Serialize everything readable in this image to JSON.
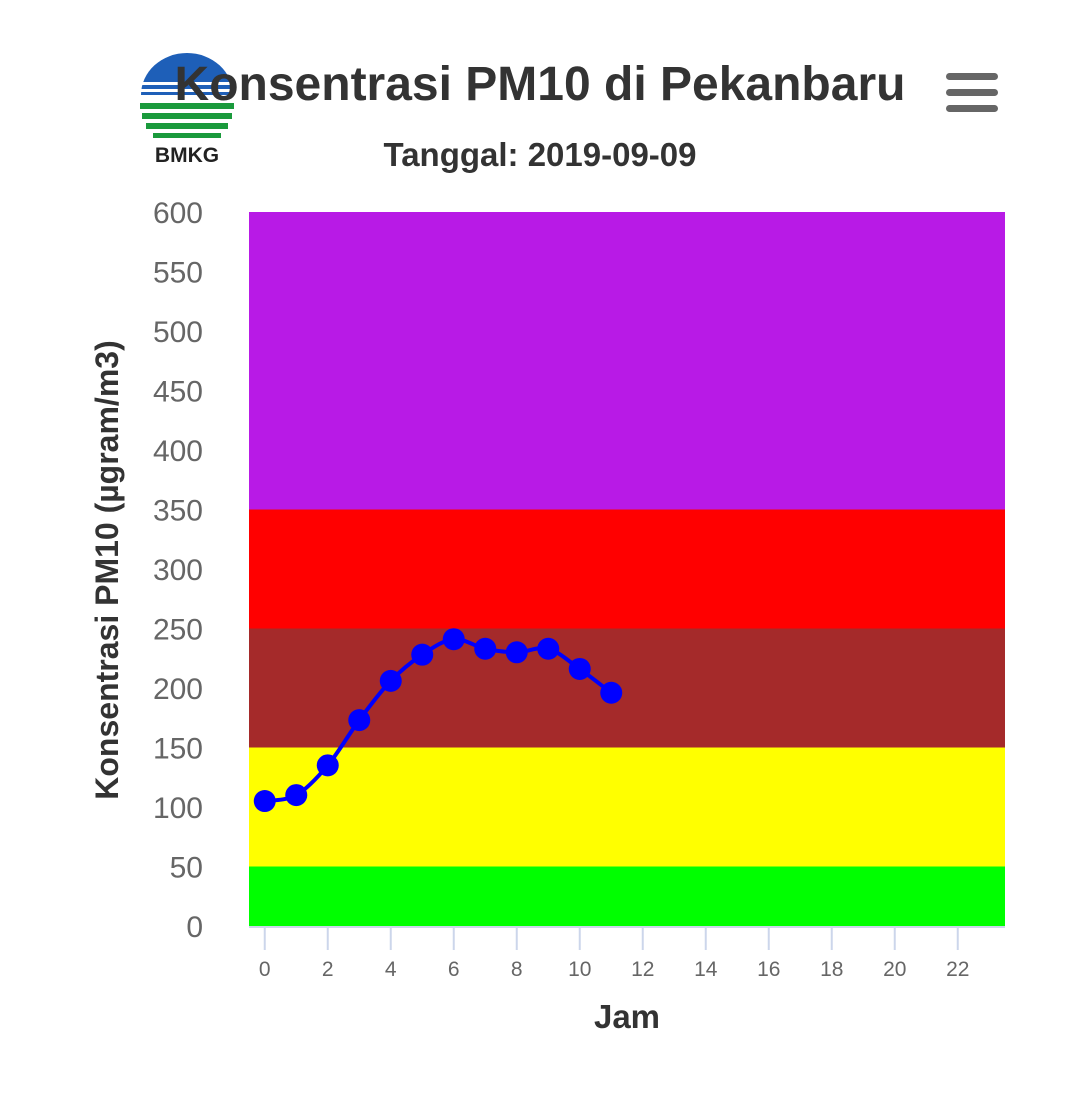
{
  "chart_data": {
    "type": "line",
    "title": "Konsentrasi PM10 di Pekanbaru",
    "subtitle": "Tanggal: 2019-09-09",
    "xlabel": "Jam",
    "ylabel": "Konsentrasi PM10 (µgram/m3)",
    "xlim": [
      -0.5,
      23.5
    ],
    "ylim": [
      0,
      600
    ],
    "xticks": [
      0,
      2,
      4,
      6,
      8,
      10,
      12,
      14,
      16,
      18,
      20,
      22
    ],
    "yticks": [
      0,
      50,
      100,
      150,
      200,
      250,
      300,
      350,
      400,
      450,
      500,
      550,
      600
    ],
    "bands": [
      {
        "from": 0,
        "to": 50,
        "color": "#00ff00"
      },
      {
        "from": 50,
        "to": 150,
        "color": "#ffff00"
      },
      {
        "from": 150,
        "to": 250,
        "color": "#a52a2a"
      },
      {
        "from": 250,
        "to": 350,
        "color": "#ff0000"
      },
      {
        "from": 350,
        "to": 600,
        "color": "#b81ae6"
      }
    ],
    "series": [
      {
        "name": "PM10",
        "color": "#0000ff",
        "x": [
          0,
          1,
          2,
          3,
          4,
          5,
          6,
          7,
          8,
          9,
          10,
          11
        ],
        "values": [
          105,
          110,
          135,
          173,
          206,
          228,
          241,
          233,
          230,
          233,
          216,
          196
        ]
      }
    ]
  },
  "logo": {
    "text": "BMKG"
  },
  "menu": {
    "icon": "hamburger-menu-icon"
  }
}
